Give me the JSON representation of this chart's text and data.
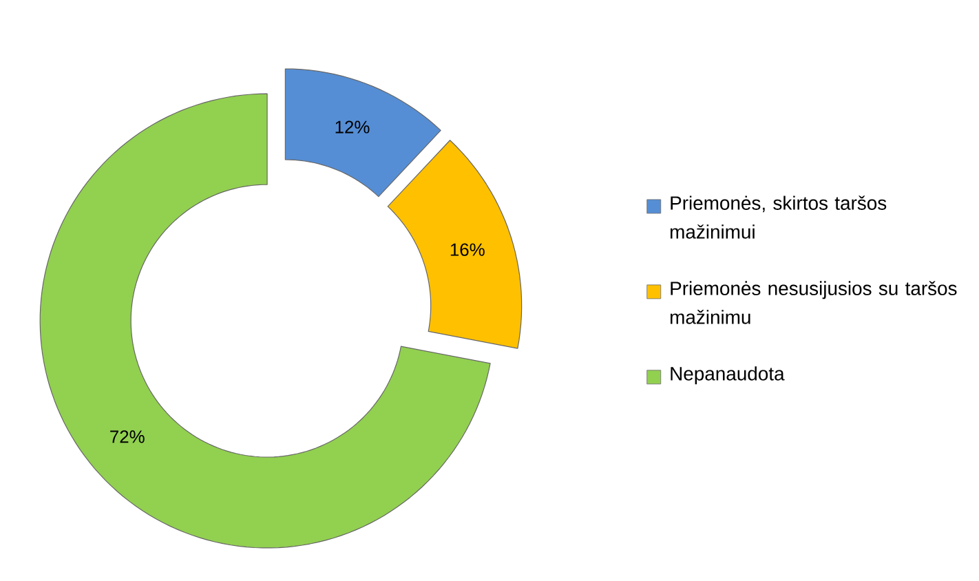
{
  "chart_data": {
    "type": "donut",
    "categories": [
      "Priemonės, skirtos taršos mažinimui",
      "Priemonės nesusijusios su taršos mažinimu",
      "Nepanaudota"
    ],
    "values": [
      12,
      16,
      72
    ],
    "colors": [
      "#558ed5",
      "#ffc000",
      "#92d050"
    ],
    "value_labels": [
      "12%",
      "16%",
      "72%"
    ],
    "legend": "right"
  }
}
